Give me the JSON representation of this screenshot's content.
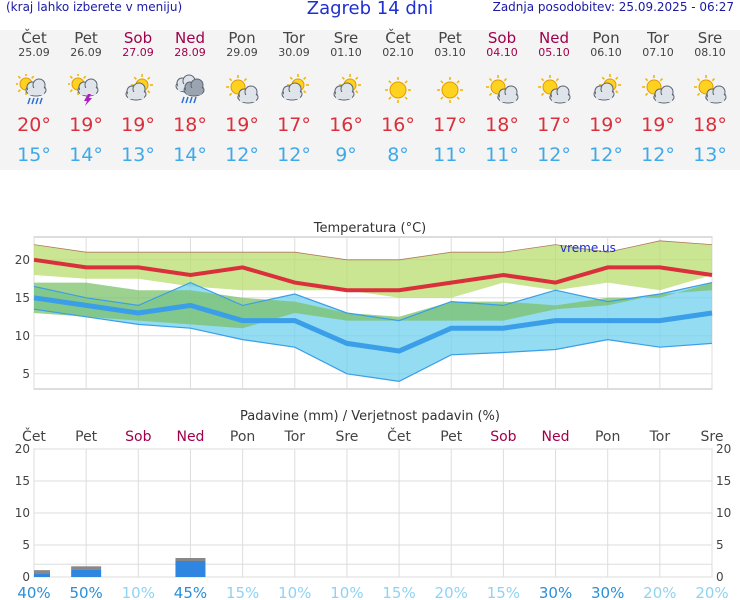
{
  "header": {
    "left_note": "(kraj lahko izberete v meniju)",
    "title": "Zagreb 14 dni",
    "updated": "Zadnja posodobitev: 25.09.2025 - 06:27"
  },
  "days": [
    {
      "name": "Čet",
      "date": "25.09",
      "weekend": false,
      "icon": "sun-cloud-rain-icon",
      "max": "20°",
      "min": "15°"
    },
    {
      "name": "Pet",
      "date": "26.09",
      "weekend": false,
      "icon": "sun-cloud-thunder-icon",
      "max": "19°",
      "min": "14°"
    },
    {
      "name": "Sob",
      "date": "27.09",
      "weekend": true,
      "icon": "sun-cloud-icon",
      "max": "19°",
      "min": "13°"
    },
    {
      "name": "Ned",
      "date": "28.09",
      "weekend": true,
      "icon": "cloud-rain-icon",
      "max": "18°",
      "min": "14°"
    },
    {
      "name": "Pon",
      "date": "29.09",
      "weekend": false,
      "icon": "sun-small-cloud-icon",
      "max": "19°",
      "min": "12°"
    },
    {
      "name": "Tor",
      "date": "30.09",
      "weekend": false,
      "icon": "sun-cloud-icon",
      "max": "17°",
      "min": "12°"
    },
    {
      "name": "Sre",
      "date": "01.10",
      "weekend": false,
      "icon": "sun-cloud-icon",
      "max": "16°",
      "min": "9°"
    },
    {
      "name": "Čet",
      "date": "02.10",
      "weekend": false,
      "icon": "sun-icon",
      "max": "16°",
      "min": "8°"
    },
    {
      "name": "Pet",
      "date": "03.10",
      "weekend": false,
      "icon": "sun-icon",
      "max": "17°",
      "min": "11°"
    },
    {
      "name": "Sob",
      "date": "04.10",
      "weekend": true,
      "icon": "sun-small-cloud-icon",
      "max": "18°",
      "min": "11°"
    },
    {
      "name": "Ned",
      "date": "05.10",
      "weekend": true,
      "icon": "sun-small-cloud-icon",
      "max": "17°",
      "min": "12°"
    },
    {
      "name": "Pon",
      "date": "06.10",
      "weekend": false,
      "icon": "sun-cloud-icon",
      "max": "19°",
      "min": "12°"
    },
    {
      "name": "Tor",
      "date": "07.10",
      "weekend": false,
      "icon": "sun-small-cloud-icon",
      "max": "19°",
      "min": "12°"
    },
    {
      "name": "Sre",
      "date": "08.10",
      "weekend": false,
      "icon": "sun-small-cloud-icon",
      "max": "18°",
      "min": "13°"
    }
  ],
  "colors": {
    "max": "#d9303b",
    "min": "#3fa9e8",
    "weekend": "#a0004a",
    "green_band": "#b8de6e",
    "blue_band": "#6fd0ee",
    "max_line": "#d9303b",
    "min_line": "#3a9ee8",
    "bar": "#2f86e0"
  },
  "chart_data": [
    {
      "type": "line",
      "title": "Temperatura (°C)",
      "watermark": "vreme.us",
      "ylim": [
        3,
        23
      ],
      "yticks": [
        5,
        10,
        15,
        20
      ],
      "series": [
        {
          "values": [
            20,
            19,
            19,
            18,
            19,
            17,
            16,
            16,
            17,
            18,
            17,
            19,
            19,
            18
          ]
        },
        {
          "values": [
            15,
            14,
            13,
            14,
            12,
            12,
            9,
            8,
            11,
            11,
            12,
            12,
            12,
            13
          ]
        },
        {
          "values": [
            22,
            21,
            21,
            21,
            21,
            21,
            20,
            20,
            21,
            21,
            22,
            21,
            22.5,
            22
          ]
        },
        {
          "values": [
            18,
            17.5,
            17.5,
            16.5,
            16,
            16,
            16,
            15,
            15,
            17,
            16,
            17,
            16,
            18
          ]
        },
        {
          "values": [
            17,
            17,
            16,
            16,
            15,
            14.5,
            13,
            12.5,
            14.5,
            14.5,
            14,
            15,
            15,
            17
          ]
        },
        {
          "values": [
            13,
            12.5,
            12,
            11.5,
            11,
            13,
            12,
            12,
            12,
            12,
            13.5,
            14,
            15.5,
            16
          ]
        },
        {
          "values": [
            16.5,
            15,
            14,
            17,
            14,
            15.5,
            13,
            12,
            14.5,
            14,
            16,
            14.5,
            15.5,
            17
          ]
        },
        {
          "values": [
            13.5,
            12.5,
            11.5,
            11,
            9.5,
            8.5,
            5,
            4,
            7.5,
            7.8,
            8.2,
            9.5,
            8.5,
            9
          ]
        }
      ]
    },
    {
      "type": "bar",
      "title": "Padavine (mm) / Verjetnost padavin (%)",
      "categories": [
        "Čet",
        "Pet",
        "Sob",
        "Ned",
        "Pon",
        "Tor",
        "Sre",
        "Čet",
        "Pet",
        "Sob",
        "Ned",
        "Pon",
        "Tor",
        "Sre"
      ],
      "values": [
        0.6,
        1.2,
        0,
        2.5,
        0,
        0,
        0,
        0,
        0,
        0,
        0,
        0,
        0,
        0
      ],
      "probability": [
        "40%",
        "50%",
        "10%",
        "45%",
        "15%",
        "10%",
        "10%",
        "15%",
        "20%",
        "15%",
        "30%",
        "30%",
        "20%",
        "20%"
      ],
      "probability_emph": [
        true,
        true,
        false,
        true,
        false,
        false,
        false,
        false,
        false,
        false,
        true,
        true,
        false,
        false
      ],
      "ylim": [
        0,
        20
      ],
      "yticks": [
        0,
        2,
        5,
        10,
        15,
        20
      ]
    }
  ]
}
